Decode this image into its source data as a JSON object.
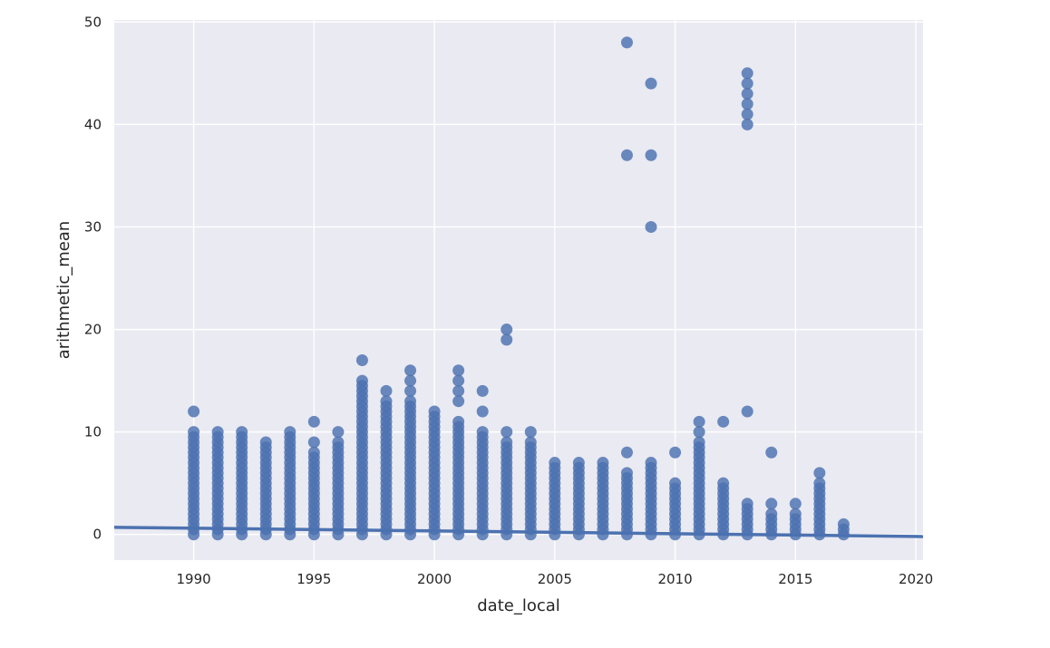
{
  "chart_data": {
    "type": "scatter",
    "title": "",
    "xlabel": "date_local",
    "ylabel": "arithmetic_mean",
    "xlim": [
      1986.7,
      2020.3
    ],
    "ylim": [
      -2.5,
      50.2
    ],
    "xticks": [
      1990,
      1995,
      2000,
      2005,
      2010,
      2015,
      2020
    ],
    "yticks": [
      0,
      10,
      20,
      30,
      40,
      50
    ],
    "grid": true,
    "legend": "none",
    "colors": {
      "points": "#4c72b0",
      "regression_line": "#4c72b0",
      "plot_background": "#eaeaf2",
      "grid": "#ffffff"
    },
    "regression_line": {
      "x": [
        1986.7,
        2020.3
      ],
      "y": [
        0.7,
        -0.2
      ]
    },
    "columns": [
      {
        "x": 1990,
        "max": 10,
        "extra": [
          12
        ]
      },
      {
        "x": 1991,
        "max": 10,
        "extra": []
      },
      {
        "x": 1992,
        "max": 10,
        "extra": []
      },
      {
        "x": 1993,
        "max": 9,
        "extra": []
      },
      {
        "x": 1994,
        "max": 10,
        "extra": []
      },
      {
        "x": 1995,
        "max": 8,
        "extra": [
          9,
          11
        ]
      },
      {
        "x": 1996,
        "max": 9,
        "extra": [
          10
        ]
      },
      {
        "x": 1997,
        "max": 15,
        "extra": [
          17
        ]
      },
      {
        "x": 1998,
        "max": 13,
        "extra": [
          14
        ]
      },
      {
        "x": 1999,
        "max": 13,
        "extra": [
          14,
          15,
          16
        ]
      },
      {
        "x": 2000,
        "max": 12,
        "extra": []
      },
      {
        "x": 2001,
        "max": 11,
        "extra": [
          13,
          14,
          15,
          16
        ]
      },
      {
        "x": 2002,
        "max": 10,
        "extra": [
          12,
          14
        ]
      },
      {
        "x": 2003,
        "max": 9,
        "extra": [
          10,
          19,
          20
        ]
      },
      {
        "x": 2004,
        "max": 9,
        "extra": [
          10
        ]
      },
      {
        "x": 2005,
        "max": 7,
        "extra": []
      },
      {
        "x": 2006,
        "max": 7,
        "extra": []
      },
      {
        "x": 2007,
        "max": 7,
        "extra": []
      },
      {
        "x": 2008,
        "max": 6,
        "extra": [
          8,
          37,
          48
        ]
      },
      {
        "x": 2009,
        "max": 7,
        "extra": [
          30,
          37,
          44
        ]
      },
      {
        "x": 2010,
        "max": 5,
        "extra": [
          8
        ]
      },
      {
        "x": 2011,
        "max": 9,
        "extra": [
          10,
          11
        ]
      },
      {
        "x": 2012,
        "max": 5,
        "extra": [
          11
        ]
      },
      {
        "x": 2013,
        "max": 3,
        "extra": [
          12,
          40,
          41,
          42,
          43,
          44,
          45
        ]
      },
      {
        "x": 2014,
        "max": 2,
        "extra": [
          3,
          8
        ]
      },
      {
        "x": 2015,
        "max": 2,
        "extra": [
          3
        ]
      },
      {
        "x": 2016,
        "max": 5,
        "extra": [
          6
        ]
      },
      {
        "x": 2017,
        "max": 1,
        "extra": []
      }
    ]
  }
}
